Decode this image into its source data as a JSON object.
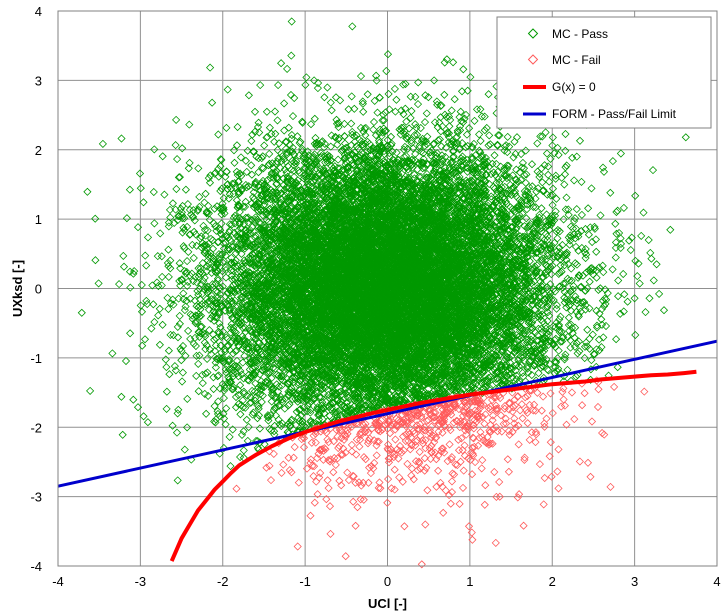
{
  "chart_data": {
    "type": "scatter",
    "xlabel": "UCl [-]",
    "ylabel": "UXksd [-]",
    "xlim": [
      -4,
      4
    ],
    "ylim": [
      -4,
      4
    ],
    "x_ticks": [
      -4,
      -3,
      -2,
      -1,
      0,
      1,
      2,
      3,
      4
    ],
    "y_ticks": [
      -4,
      -3,
      -2,
      -1,
      0,
      1,
      2,
      3,
      4
    ],
    "grid": true,
    "legend_position": "top-right",
    "colors": {
      "pass": "#009900",
      "fail": "#ff5a5a",
      "limit_state": "#ff0000",
      "form": "#0000cc"
    },
    "series": [
      {
        "name": "MC - Pass",
        "kind": "scatter",
        "marker": "diamond",
        "distribution": "standard normal samples where G(x) > 0",
        "mean": [
          0,
          0
        ],
        "std": [
          1,
          1
        ]
      },
      {
        "name": "MC - Fail",
        "kind": "scatter",
        "marker": "diamond",
        "distribution": "standard normal samples where G(x) <= 0",
        "mean": [
          0,
          0
        ],
        "std": [
          1,
          1
        ]
      },
      {
        "name": "G(x) = 0",
        "kind": "line",
        "x": [
          -2.62,
          -2.5,
          -2.4,
          -2.3,
          -2.2,
          -2.1,
          -2.0,
          -1.9,
          -1.8,
          -1.6,
          -1.4,
          -1.2,
          -1.0,
          -0.8,
          -0.6,
          -0.4,
          -0.2,
          0.0,
          0.2,
          0.4,
          0.6,
          0.8,
          1.0,
          1.2,
          1.4,
          1.6,
          1.8,
          2.0,
          2.2,
          2.4,
          2.6,
          2.8,
          3.0,
          3.2,
          3.4,
          3.6,
          3.75
        ],
        "y": [
          -3.93,
          -3.6,
          -3.4,
          -3.2,
          -3.05,
          -2.9,
          -2.78,
          -2.66,
          -2.55,
          -2.4,
          -2.27,
          -2.16,
          -2.07,
          -1.99,
          -1.92,
          -1.86,
          -1.8,
          -1.75,
          -1.7,
          -1.65,
          -1.61,
          -1.57,
          -1.53,
          -1.5,
          -1.47,
          -1.44,
          -1.41,
          -1.38,
          -1.36,
          -1.34,
          -1.31,
          -1.29,
          -1.27,
          -1.25,
          -1.24,
          -1.22,
          -1.2
        ]
      },
      {
        "name": "FORM - Pass/Fail Limit",
        "kind": "line",
        "x": [
          -4,
          4
        ],
        "y": [
          -2.85,
          -0.76
        ]
      }
    ]
  }
}
